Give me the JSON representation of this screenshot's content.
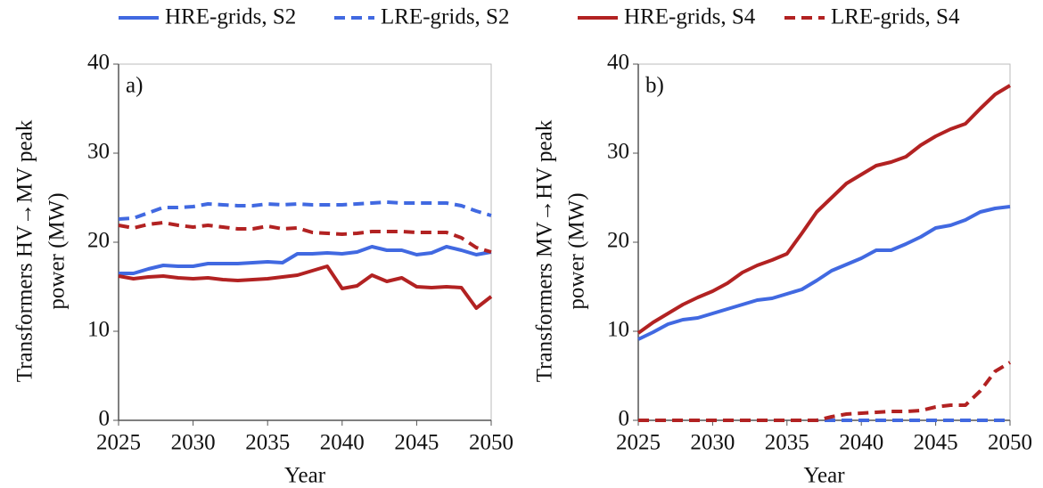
{
  "legend": [
    {
      "name": "HRE-grids, S2",
      "color": "#4169e1",
      "dashed": false
    },
    {
      "name": "LRE-grids, S2",
      "color": "#4169e1",
      "dashed": true
    },
    {
      "name": "HRE-grids, S4",
      "color": "#b22222",
      "dashed": false
    },
    {
      "name": "LRE-grids, S4",
      "color": "#b22222",
      "dashed": true
    }
  ],
  "chart_data": [
    {
      "type": "line",
      "annotation": "a)",
      "xlabel": "Year",
      "ylabel": [
        "Transformers HV→MV peak",
        "power (MW)"
      ],
      "x": [
        2025,
        2026,
        2027,
        2028,
        2029,
        2030,
        2031,
        2032,
        2033,
        2034,
        2035,
        2036,
        2037,
        2038,
        2039,
        2040,
        2041,
        2042,
        2043,
        2044,
        2045,
        2046,
        2047,
        2048,
        2049,
        2050
      ],
      "xlim": [
        2025,
        2050
      ],
      "xticks": [
        2025,
        2030,
        2035,
        2040,
        2045,
        2050
      ],
      "ylim": [
        0,
        40
      ],
      "yticks": [
        0,
        10,
        20,
        30,
        40
      ],
      "series": [
        {
          "color": "#4169e1",
          "dashed": false,
          "values": [
            16.5,
            16.5,
            17.0,
            17.4,
            17.3,
            17.3,
            17.6,
            17.6,
            17.6,
            17.7,
            17.8,
            17.7,
            18.7,
            18.7,
            18.8,
            18.7,
            18.9,
            19.5,
            19.1,
            19.1,
            18.6,
            18.8,
            19.5,
            19.1,
            18.6,
            18.9
          ]
        },
        {
          "color": "#4169e1",
          "dashed": true,
          "values": [
            22.6,
            22.7,
            23.3,
            23.9,
            23.9,
            24.0,
            24.3,
            24.2,
            24.1,
            24.1,
            24.3,
            24.2,
            24.3,
            24.2,
            24.2,
            24.2,
            24.3,
            24.4,
            24.5,
            24.4,
            24.4,
            24.4,
            24.4,
            24.1,
            23.5,
            23.0
          ]
        },
        {
          "color": "#b22222",
          "dashed": false,
          "values": [
            16.2,
            15.9,
            16.1,
            16.2,
            16.0,
            15.9,
            16.0,
            15.8,
            15.7,
            15.8,
            15.9,
            16.1,
            16.3,
            16.8,
            17.3,
            14.8,
            15.1,
            16.3,
            15.6,
            16.0,
            15.0,
            14.9,
            15.0,
            14.9,
            12.6,
            13.9
          ]
        },
        {
          "color": "#b22222",
          "dashed": true,
          "values": [
            21.9,
            21.6,
            22.0,
            22.2,
            21.9,
            21.7,
            21.9,
            21.7,
            21.5,
            21.5,
            21.8,
            21.5,
            21.6,
            21.1,
            21.0,
            20.9,
            21.0,
            21.2,
            21.2,
            21.2,
            21.1,
            21.1,
            21.1,
            20.5,
            19.4,
            18.9
          ]
        }
      ]
    },
    {
      "type": "line",
      "annotation": "b)",
      "xlabel": "Year",
      "ylabel": [
        "Transformers MV→HV peak",
        "power (MW)"
      ],
      "x": [
        2025,
        2026,
        2027,
        2028,
        2029,
        2030,
        2031,
        2032,
        2033,
        2034,
        2035,
        2036,
        2037,
        2038,
        2039,
        2040,
        2041,
        2042,
        2043,
        2044,
        2045,
        2046,
        2047,
        2048,
        2049,
        2050
      ],
      "xlim": [
        2025,
        2050
      ],
      "xticks": [
        2025,
        2030,
        2035,
        2040,
        2045,
        2050
      ],
      "ylim": [
        0,
        40
      ],
      "yticks": [
        0,
        10,
        20,
        30,
        40
      ],
      "series": [
        {
          "color": "#4169e1",
          "dashed": false,
          "values": [
            9.1,
            9.9,
            10.8,
            11.3,
            11.5,
            12.0,
            12.5,
            13.0,
            13.5,
            13.7,
            14.2,
            14.7,
            15.7,
            16.8,
            17.5,
            18.2,
            19.1,
            19.1,
            19.8,
            20.6,
            21.6,
            21.9,
            22.5,
            23.4,
            23.8,
            24.0
          ]
        },
        {
          "color": "#4169e1",
          "dashed": true,
          "values": [
            0,
            0,
            0,
            0,
            0,
            0,
            0,
            0,
            0,
            0,
            0,
            0,
            0,
            0,
            0,
            0,
            0,
            0,
            0,
            0,
            0,
            0,
            0,
            0,
            0,
            0
          ]
        },
        {
          "color": "#b22222",
          "dashed": false,
          "values": [
            9.8,
            11.0,
            12.0,
            13.0,
            13.8,
            14.5,
            15.4,
            16.6,
            17.4,
            18.0,
            18.7,
            21.0,
            23.4,
            25.0,
            26.6,
            27.6,
            28.6,
            29.0,
            29.6,
            30.9,
            31.9,
            32.7,
            33.3,
            35.0,
            36.6,
            37.6
          ]
        },
        {
          "color": "#b22222",
          "dashed": true,
          "values": [
            0,
            0,
            0,
            0,
            0,
            0,
            0,
            0,
            0,
            0,
            0,
            0,
            0,
            0.4,
            0.7,
            0.8,
            0.9,
            1.0,
            1.0,
            1.1,
            1.5,
            1.7,
            1.7,
            3.3,
            5.5,
            6.5
          ]
        }
      ]
    }
  ]
}
